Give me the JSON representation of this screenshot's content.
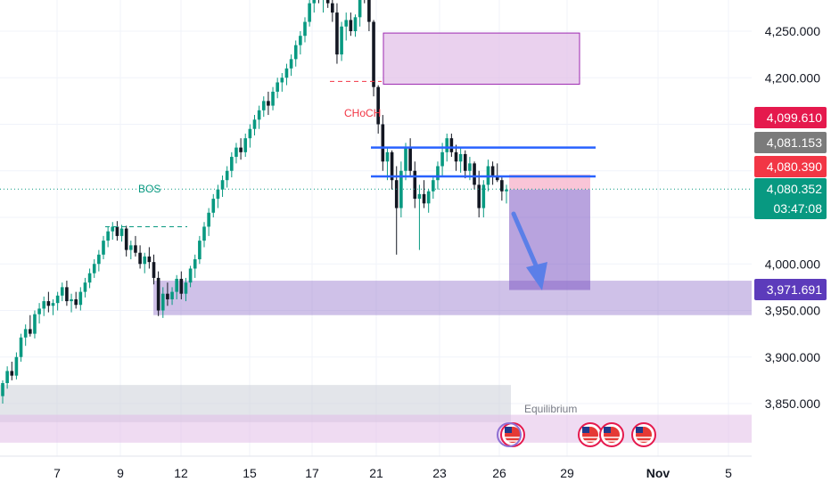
{
  "chart_data": {
    "type": "candlestick",
    "x_ticks": [
      "7",
      "9",
      "12",
      "15",
      "17",
      "21",
      "23",
      "26",
      "29",
      "Nov",
      "5"
    ],
    "y_ticks": [
      4250,
      4200,
      4100,
      4000,
      3950,
      3900,
      3850
    ],
    "y_tick_labels": [
      "4,250.000",
      "4,200.000",
      "4,000.000",
      "3,950.000",
      "3,900.000",
      "3,850.000"
    ],
    "ylim": [
      3807,
      4295
    ],
    "grid": true,
    "price_labels": [
      {
        "text": "4,099.610",
        "value": 4099.61,
        "color": "#e5194d"
      },
      {
        "text": "4,081.153",
        "value": 4081.153,
        "color": "#7b7b7b"
      },
      {
        "text": "4,080.390",
        "value": 4080.39,
        "color": "#f23645"
      },
      {
        "text": "4,080.352",
        "value": 4080.352,
        "color": "#089981",
        "countdown": "03:47:08"
      },
      {
        "text": "3,971.691",
        "value": 3971.691,
        "color": "#5c3bbb"
      }
    ],
    "annotations": {
      "bos": "BOS",
      "choch": "CHoCH",
      "equilibrium": "Equilibrium"
    },
    "zones": [
      {
        "kind": "supply",
        "y_top": 4248,
        "y_bottom": 4193,
        "color": "#9c27b0"
      },
      {
        "kind": "demand",
        "y_top": 3982,
        "y_bottom": 3945,
        "color": "#7e57c2"
      },
      {
        "kind": "short_position_target",
        "y_top": 4080,
        "y_bottom": 3972,
        "color": "#7e57c2"
      },
      {
        "kind": "short_position_stop",
        "y_top": 4096,
        "y_bottom": 4080,
        "color": "#f8bbd0"
      },
      {
        "kind": "grey_range",
        "y_top": 3870,
        "y_bottom": 3830,
        "color": "#b0b0b0"
      }
    ],
    "levels": [
      {
        "kind": "resistance_blue",
        "value": 4125
      },
      {
        "kind": "resistance_blue",
        "value": 4094
      },
      {
        "kind": "current_price_dotted",
        "value": 4080.352
      }
    ],
    "candles": [
      {
        "o": 3858,
        "h": 3875,
        "l": 3850,
        "c": 3872
      },
      {
        "o": 3872,
        "h": 3890,
        "l": 3866,
        "c": 3885
      },
      {
        "o": 3885,
        "h": 3895,
        "l": 3875,
        "c": 3880
      },
      {
        "o": 3880,
        "h": 3905,
        "l": 3876,
        "c": 3900
      },
      {
        "o": 3900,
        "h": 3925,
        "l": 3895,
        "c": 3921
      },
      {
        "o": 3921,
        "h": 3935,
        "l": 3912,
        "c": 3930
      },
      {
        "o": 3930,
        "h": 3945,
        "l": 3922,
        "c": 3925
      },
      {
        "o": 3925,
        "h": 3950,
        "l": 3920,
        "c": 3946
      },
      {
        "o": 3946,
        "h": 3958,
        "l": 3936,
        "c": 3952
      },
      {
        "o": 3952,
        "h": 3965,
        "l": 3944,
        "c": 3960
      },
      {
        "o": 3960,
        "h": 3970,
        "l": 3948,
        "c": 3955
      },
      {
        "o": 3955,
        "h": 3962,
        "l": 3945,
        "c": 3958
      },
      {
        "o": 3958,
        "h": 3970,
        "l": 3950,
        "c": 3966
      },
      {
        "o": 3966,
        "h": 3980,
        "l": 3960,
        "c": 3975
      },
      {
        "o": 3975,
        "h": 3982,
        "l": 3955,
        "c": 3960
      },
      {
        "o": 3960,
        "h": 3968,
        "l": 3948,
        "c": 3962
      },
      {
        "o": 3962,
        "h": 3970,
        "l": 3952,
        "c": 3956
      },
      {
        "o": 3956,
        "h": 3975,
        "l": 3950,
        "c": 3970
      },
      {
        "o": 3970,
        "h": 3985,
        "l": 3964,
        "c": 3980
      },
      {
        "o": 3980,
        "h": 3995,
        "l": 3974,
        "c": 3990
      },
      {
        "o": 3990,
        "h": 4005,
        "l": 3985,
        "c": 4000
      },
      {
        "o": 4000,
        "h": 4015,
        "l": 3992,
        "c": 4010
      },
      {
        "o": 4010,
        "h": 4030,
        "l": 4005,
        "c": 4025
      },
      {
        "o": 4025,
        "h": 4040,
        "l": 4018,
        "c": 4035
      },
      {
        "o": 4035,
        "h": 4045,
        "l": 4026,
        "c": 4040
      },
      {
        "o": 4040,
        "h": 4046,
        "l": 4025,
        "c": 4030
      },
      {
        "o": 4030,
        "h": 4042,
        "l": 4024,
        "c": 4038
      },
      {
        "o": 4038,
        "h": 4041,
        "l": 4008,
        "c": 4015
      },
      {
        "o": 4015,
        "h": 4025,
        "l": 4005,
        "c": 4020
      },
      {
        "o": 4020,
        "h": 4030,
        "l": 4008,
        "c": 4012
      },
      {
        "o": 4012,
        "h": 4020,
        "l": 3995,
        "c": 4000
      },
      {
        "o": 4000,
        "h": 4012,
        "l": 3990,
        "c": 4008
      },
      {
        "o": 4008,
        "h": 4018,
        "l": 3995,
        "c": 4002
      },
      {
        "o": 4002,
        "h": 4010,
        "l": 3978,
        "c": 3985
      },
      {
        "o": 3985,
        "h": 3992,
        "l": 3944,
        "c": 3950
      },
      {
        "o": 3950,
        "h": 3975,
        "l": 3942,
        "c": 3968
      },
      {
        "o": 3968,
        "h": 3980,
        "l": 3955,
        "c": 3962
      },
      {
        "o": 3962,
        "h": 3975,
        "l": 3956,
        "c": 3970
      },
      {
        "o": 3970,
        "h": 3988,
        "l": 3962,
        "c": 3984
      },
      {
        "o": 3984,
        "h": 3992,
        "l": 3962,
        "c": 3968
      },
      {
        "o": 3968,
        "h": 3985,
        "l": 3960,
        "c": 3980
      },
      {
        "o": 3980,
        "h": 3998,
        "l": 3975,
        "c": 3995
      },
      {
        "o": 3995,
        "h": 4010,
        "l": 3985,
        "c": 4005
      },
      {
        "o": 4005,
        "h": 4030,
        "l": 4000,
        "c": 4025
      },
      {
        "o": 4025,
        "h": 4045,
        "l": 4018,
        "c": 4040
      },
      {
        "o": 4040,
        "h": 4060,
        "l": 4030,
        "c": 4055
      },
      {
        "o": 4055,
        "h": 4075,
        "l": 4050,
        "c": 4070
      },
      {
        "o": 4070,
        "h": 4085,
        "l": 4060,
        "c": 4080
      },
      {
        "o": 4080,
        "h": 4095,
        "l": 4072,
        "c": 4090
      },
      {
        "o": 4090,
        "h": 4105,
        "l": 4082,
        "c": 4100
      },
      {
        "o": 4100,
        "h": 4120,
        "l": 4093,
        "c": 4115
      },
      {
        "o": 4115,
        "h": 4130,
        "l": 4108,
        "c": 4125
      },
      {
        "o": 4125,
        "h": 4135,
        "l": 4112,
        "c": 4120
      },
      {
        "o": 4120,
        "h": 4140,
        "l": 4115,
        "c": 4135
      },
      {
        "o": 4135,
        "h": 4150,
        "l": 4125,
        "c": 4145
      },
      {
        "o": 4145,
        "h": 4160,
        "l": 4138,
        "c": 4155
      },
      {
        "o": 4155,
        "h": 4170,
        "l": 4145,
        "c": 4165
      },
      {
        "o": 4165,
        "h": 4180,
        "l": 4158,
        "c": 4175
      },
      {
        "o": 4175,
        "h": 4185,
        "l": 4160,
        "c": 4170
      },
      {
        "o": 4170,
        "h": 4190,
        "l": 4165,
        "c": 4185
      },
      {
        "o": 4185,
        "h": 4200,
        "l": 4178,
        "c": 4195
      },
      {
        "o": 4195,
        "h": 4205,
        "l": 4185,
        "c": 4200
      },
      {
        "o": 4200,
        "h": 4215,
        "l": 4192,
        "c": 4210
      },
      {
        "o": 4210,
        "h": 4225,
        "l": 4202,
        "c": 4220
      },
      {
        "o": 4220,
        "h": 4240,
        "l": 4212,
        "c": 4235
      },
      {
        "o": 4235,
        "h": 4250,
        "l": 4225,
        "c": 4245
      },
      {
        "o": 4245,
        "h": 4265,
        "l": 4238,
        "c": 4260
      },
      {
        "o": 4260,
        "h": 4285,
        "l": 4255,
        "c": 4280
      },
      {
        "o": 4280,
        "h": 4300,
        "l": 4270,
        "c": 4295
      },
      {
        "o": 4295,
        "h": 4305,
        "l": 4280,
        "c": 4285
      },
      {
        "o": 4285,
        "h": 4300,
        "l": 4270,
        "c": 4290
      },
      {
        "o": 4290,
        "h": 4305,
        "l": 4275,
        "c": 4280
      },
      {
        "o": 4280,
        "h": 4290,
        "l": 4260,
        "c": 4270
      },
      {
        "o": 4270,
        "h": 4280,
        "l": 4215,
        "c": 4225
      },
      {
        "o": 4225,
        "h": 4260,
        "l": 4218,
        "c": 4255
      },
      {
        "o": 4255,
        "h": 4270,
        "l": 4240,
        "c": 4262
      },
      {
        "o": 4262,
        "h": 4270,
        "l": 4245,
        "c": 4250
      },
      {
        "o": 4250,
        "h": 4268,
        "l": 4244,
        "c": 4265
      },
      {
        "o": 4265,
        "h": 4300,
        "l": 4255,
        "c": 4295
      },
      {
        "o": 4295,
        "h": 4305,
        "l": 4280,
        "c": 4290
      },
      {
        "o": 4290,
        "h": 4295,
        "l": 4250,
        "c": 4260
      },
      {
        "o": 4260,
        "h": 4262,
        "l": 4180,
        "c": 4190
      },
      {
        "o": 4190,
        "h": 4192,
        "l": 4140,
        "c": 4150
      },
      {
        "o": 4150,
        "h": 4160,
        "l": 4100,
        "c": 4110
      },
      {
        "o": 4110,
        "h": 4125,
        "l": 4090,
        "c": 4120
      },
      {
        "o": 4120,
        "h": 4122,
        "l": 4080,
        "c": 4090
      },
      {
        "o": 4090,
        "h": 4105,
        "l": 4010,
        "c": 4060
      },
      {
        "o": 4060,
        "h": 4110,
        "l": 4050,
        "c": 4100
      },
      {
        "o": 4100,
        "h": 4130,
        "l": 4090,
        "c": 4125
      },
      {
        "o": 4125,
        "h": 4135,
        "l": 4095,
        "c": 4100
      },
      {
        "o": 4100,
        "h": 4110,
        "l": 4060,
        "c": 4070
      },
      {
        "o": 4070,
        "h": 4085,
        "l": 4015,
        "c": 4075
      },
      {
        "o": 4075,
        "h": 4090,
        "l": 4060,
        "c": 4065
      },
      {
        "o": 4065,
        "h": 4080,
        "l": 4055,
        "c": 4078
      },
      {
        "o": 4078,
        "h": 4095,
        "l": 4070,
        "c": 4090
      },
      {
        "o": 4090,
        "h": 4110,
        "l": 4080,
        "c": 4105
      },
      {
        "o": 4105,
        "h": 4130,
        "l": 4095,
        "c": 4120
      },
      {
        "o": 4120,
        "h": 4140,
        "l": 4110,
        "c": 4135
      },
      {
        "o": 4135,
        "h": 4140,
        "l": 4115,
        "c": 4120
      },
      {
        "o": 4120,
        "h": 4128,
        "l": 4100,
        "c": 4110
      },
      {
        "o": 4110,
        "h": 4125,
        "l": 4098,
        "c": 4118
      },
      {
        "o": 4118,
        "h": 4122,
        "l": 4092,
        "c": 4100
      },
      {
        "o": 4100,
        "h": 4115,
        "l": 4090,
        "c": 4108
      },
      {
        "o": 4108,
        "h": 4110,
        "l": 4080,
        "c": 4085
      },
      {
        "o": 4085,
        "h": 4100,
        "l": 4050,
        "c": 4060
      },
      {
        "o": 4060,
        "h": 4090,
        "l": 4050,
        "c": 4085
      },
      {
        "o": 4085,
        "h": 4112,
        "l": 4078,
        "c": 4105
      },
      {
        "o": 4105,
        "h": 4110,
        "l": 4085,
        "c": 4095
      },
      {
        "o": 4095,
        "h": 4108,
        "l": 4088,
        "c": 4090
      },
      {
        "o": 4090,
        "h": 4095,
        "l": 4068,
        "c": 4078
      },
      {
        "o": 4078,
        "h": 4085,
        "l": 4065,
        "c": 4080
      }
    ],
    "up_color": "#089981",
    "down_color": "#131722"
  }
}
